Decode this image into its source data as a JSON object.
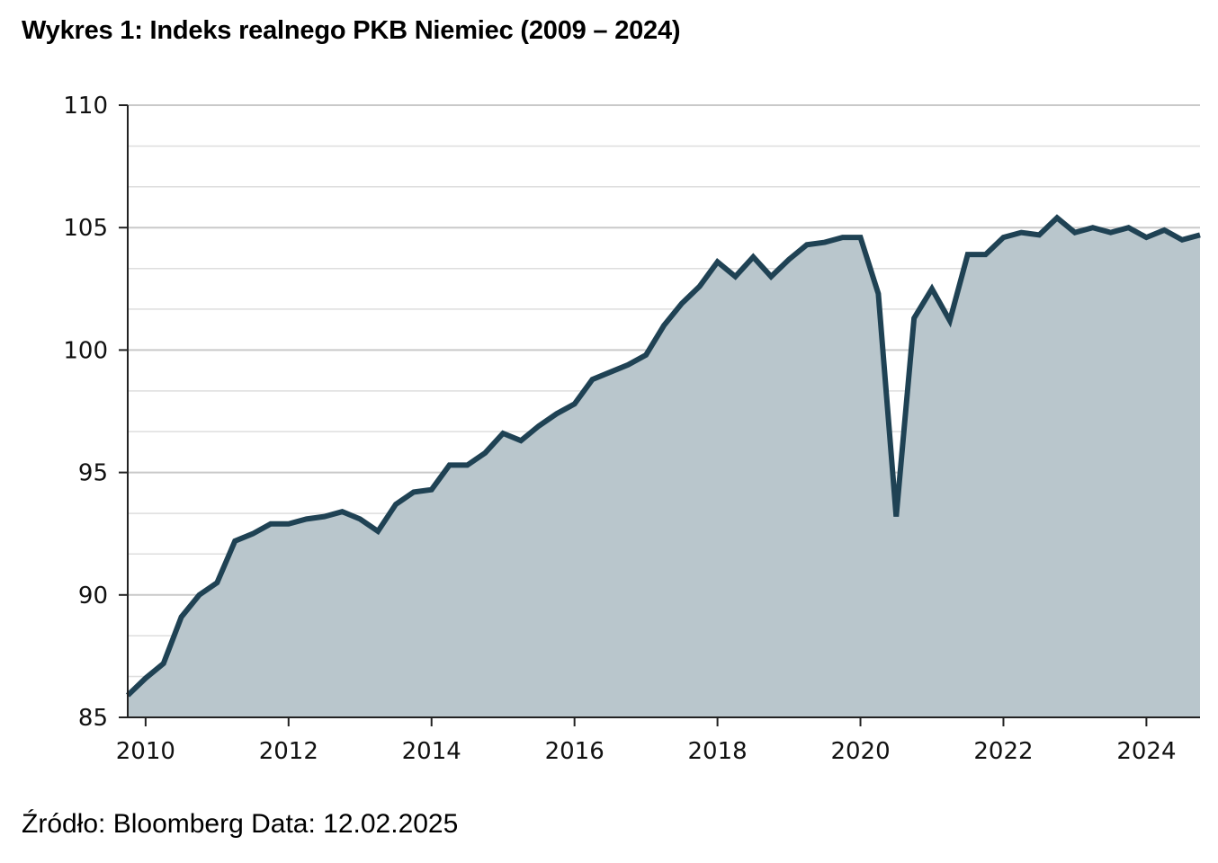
{
  "title": "Wykres 1: Indeks realnego PKB Niemiec (2009 – 2024)",
  "source": "Źródło: Bloomberg Data: 12.02.2025",
  "colors": {
    "line": "#1f4254",
    "area": "#b9c6cc",
    "grid_major": "#c9c9c9",
    "grid_minor": "#dedede",
    "axis": "#222222"
  },
  "chart_data": {
    "type": "area",
    "title": "Wykres 1: Indeks realnego PKB Niemiec (2009 – 2024)",
    "xlabel": "",
    "ylabel": "",
    "ylim": [
      85,
      110
    ],
    "xlim": [
      2009.75,
      2024.75
    ],
    "y_ticks": [
      85,
      90,
      95,
      100,
      105,
      110
    ],
    "y_minor_ticks": [
      86.67,
      88.33,
      91.67,
      93.33,
      96.67,
      98.33,
      101.67,
      103.33,
      106.67,
      108.33
    ],
    "x_ticks": [
      2010,
      2012,
      2014,
      2016,
      2018,
      2020,
      2022,
      2024
    ],
    "x_tick_labels": [
      "2010",
      "2012",
      "2014",
      "2016",
      "2018",
      "2020",
      "2022",
      "2024"
    ],
    "grid": true,
    "series": [
      {
        "x": [
          2009.75,
          2010.0,
          2010.25,
          2010.5,
          2010.75,
          2011.0,
          2011.25,
          2011.5,
          2011.75,
          2012.0,
          2012.25,
          2012.5,
          2012.75,
          2013.0,
          2013.25,
          2013.5,
          2013.75,
          2014.0,
          2014.25,
          2014.5,
          2014.75,
          2015.0,
          2015.25,
          2015.5,
          2015.75,
          2016.0,
          2016.25,
          2016.5,
          2016.75,
          2017.0,
          2017.25,
          2017.5,
          2017.75,
          2018.0,
          2018.25,
          2018.5,
          2018.75,
          2019.0,
          2019.25,
          2019.5,
          2019.75,
          2020.0,
          2020.25,
          2020.5,
          2020.75,
          2021.0,
          2021.25,
          2021.5,
          2021.75,
          2022.0,
          2022.25,
          2022.5,
          2022.75,
          2023.0,
          2023.25,
          2023.5,
          2023.75,
          2024.0,
          2024.25,
          2024.5,
          2024.75
        ],
        "values": [
          85.9,
          86.6,
          87.2,
          89.1,
          90.0,
          90.5,
          92.2,
          92.5,
          92.9,
          92.9,
          93.1,
          93.2,
          93.4,
          93.1,
          92.6,
          93.7,
          94.2,
          94.3,
          95.3,
          95.3,
          95.8,
          96.6,
          96.3,
          96.9,
          97.4,
          97.8,
          98.8,
          99.1,
          99.4,
          99.8,
          101.0,
          101.9,
          102.6,
          103.6,
          103.0,
          103.8,
          103.0,
          103.7,
          104.3,
          104.4,
          104.6,
          104.6,
          102.3,
          93.2,
          101.3,
          102.5,
          101.2,
          103.9,
          103.9,
          104.6,
          104.8,
          104.7,
          105.4,
          104.8,
          105.0,
          104.8,
          105.0,
          104.6,
          104.9,
          104.5,
          104.7
        ]
      }
    ]
  }
}
